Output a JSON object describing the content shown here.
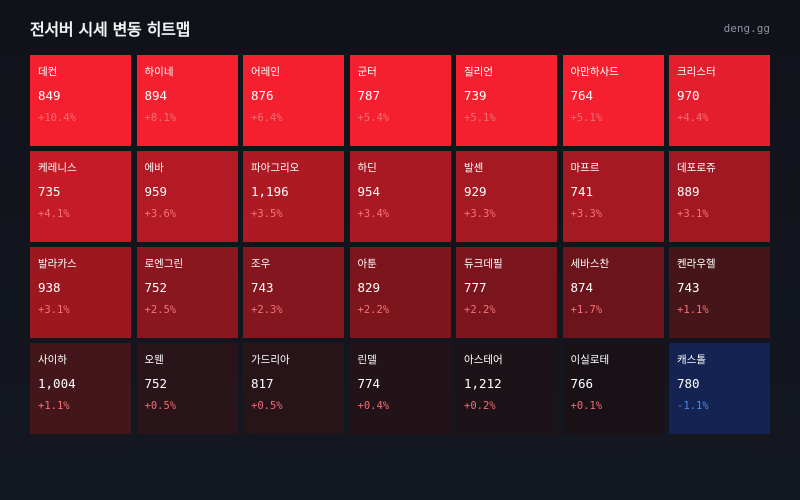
{
  "header": {
    "title": "전서버 시세 변동 히트맵",
    "brand": "deng.gg"
  },
  "servers": [
    {
      "name": "데컨",
      "price": "849",
      "change": "+10.4%",
      "bg": "#f5202f",
      "change_color": "#f36e76"
    },
    {
      "name": "하이네",
      "price": "894",
      "change": "+8.1%",
      "bg": "#f5202f",
      "change_color": "#f36e76"
    },
    {
      "name": "어레인",
      "price": "876",
      "change": "+6.4%",
      "bg": "#f5202f",
      "change_color": "#f36e76"
    },
    {
      "name": "군터",
      "price": "787",
      "change": "+5.4%",
      "bg": "#f5202f",
      "change_color": "#f36e76"
    },
    {
      "name": "질리언",
      "price": "739",
      "change": "+5.1%",
      "bg": "#f5202f",
      "change_color": "#f36e76"
    },
    {
      "name": "아만하사드",
      "price": "764",
      "change": "+5.1%",
      "bg": "#f5202f",
      "change_color": "#f36e76"
    },
    {
      "name": "크리스터",
      "price": "970",
      "change": "+4.4%",
      "bg": "#e41e2c",
      "change_color": "#f36e76"
    },
    {
      "name": "케레니스",
      "price": "735",
      "change": "+4.1%",
      "bg": "#c51b26",
      "change_color": "#f7727a"
    },
    {
      "name": "에바",
      "price": "959",
      "change": "+3.6%",
      "bg": "#b31a25",
      "change_color": "#f7727a"
    },
    {
      "name": "파아그리오",
      "price": "1,196",
      "change": "+3.5%",
      "bg": "#ae1a24",
      "change_color": "#f7727a"
    },
    {
      "name": "하딘",
      "price": "954",
      "change": "+3.4%",
      "bg": "#aa1923",
      "change_color": "#f7727a"
    },
    {
      "name": "발센",
      "price": "929",
      "change": "+3.3%",
      "bg": "#a51923",
      "change_color": "#f7727a"
    },
    {
      "name": "마프르",
      "price": "741",
      "change": "+3.3%",
      "bg": "#a51923",
      "change_color": "#f7727a"
    },
    {
      "name": "데포로쥬",
      "price": "889",
      "change": "+3.1%",
      "bg": "#a21822",
      "change_color": "#f7727a"
    },
    {
      "name": "발라카스",
      "price": "938",
      "change": "+3.1%",
      "bg": "#9b1821",
      "change_color": "#f7727a"
    },
    {
      "name": "로엔그린",
      "price": "752",
      "change": "+2.5%",
      "bg": "#8a161f",
      "change_color": "#f7727a"
    },
    {
      "name": "조우",
      "price": "743",
      "change": "+2.3%",
      "bg": "#83161e",
      "change_color": "#f7727a"
    },
    {
      "name": "아툰",
      "price": "829",
      "change": "+2.2%",
      "bg": "#7d151d",
      "change_color": "#f7727a"
    },
    {
      "name": "듀크데필",
      "price": "777",
      "change": "+2.2%",
      "bg": "#7a151d",
      "change_color": "#f7727a"
    },
    {
      "name": "세바스찬",
      "price": "874",
      "change": "+1.7%",
      "bg": "#6b141b",
      "change_color": "#f7727a"
    },
    {
      "name": "켄라우헬",
      "price": "743",
      "change": "+1.1%",
      "bg": "#46151a",
      "change_color": "#f7727a"
    },
    {
      "name": "사이하",
      "price": "1,004",
      "change": "+1.1%",
      "bg": "#43161b",
      "change_color": "#f7727a"
    },
    {
      "name": "오웬",
      "price": "752",
      "change": "+0.5%",
      "bg": "#281419",
      "change_color": "#f26a72"
    },
    {
      "name": "가드리아",
      "price": "817",
      "change": "+0.5%",
      "bg": "#261419",
      "change_color": "#f26a72"
    },
    {
      "name": "린델",
      "price": "774",
      "change": "+0.4%",
      "bg": "#221319",
      "change_color": "#f26a72"
    },
    {
      "name": "아스테어",
      "price": "1,212",
      "change": "+0.2%",
      "bg": "#1c1318",
      "change_color": "#f26a72"
    },
    {
      "name": "이실로테",
      "price": "766",
      "change": "+0.1%",
      "bg": "#181218",
      "change_color": "#f26a72"
    },
    {
      "name": "캐스톨",
      "price": "780",
      "change": "-1.1%",
      "bg": "#142352",
      "change_color": "#4f86ec"
    }
  ]
}
